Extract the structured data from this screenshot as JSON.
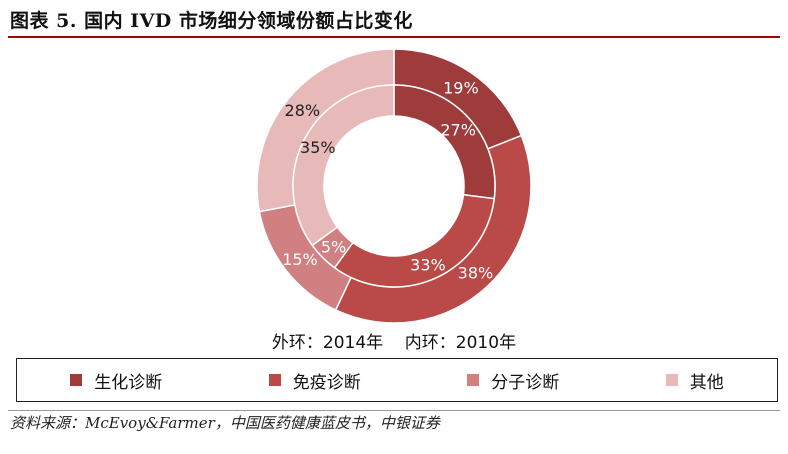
{
  "title": "图表 5. 国内 IVD 市场细分领域份额占比变化",
  "ring_caption": "外环：2014年    内环：2010年",
  "source": "资料来源：McEvoy&Farmer，中国医药健康蓝皮书，中银证券",
  "chart_data": {
    "type": "pie",
    "variant": "double-donut",
    "categories": [
      "生化诊断",
      "免疫诊断",
      "分子诊断",
      "其他"
    ],
    "colors": [
      "#9e3b3b",
      "#b94a48",
      "#d08080",
      "#e8b9b9"
    ],
    "series": [
      {
        "name": "2014年",
        "ring": "outer",
        "values": [
          19,
          38,
          15,
          28
        ]
      },
      {
        "name": "2010年",
        "ring": "inner",
        "values": [
          27,
          33,
          5,
          35
        ]
      }
    ],
    "legend_placement": "bottom"
  }
}
